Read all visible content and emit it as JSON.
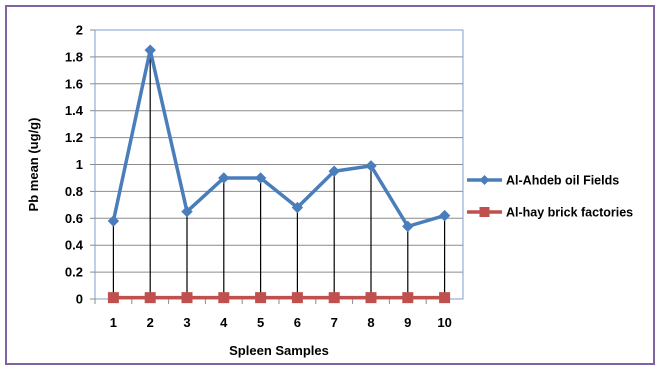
{
  "chart_data": {
    "type": "line",
    "title": "",
    "xlabel": "Spleen Samples",
    "ylabel": "Pb mean (ug/g)",
    "categories": [
      "1",
      "2",
      "3",
      "4",
      "5",
      "6",
      "7",
      "8",
      "9",
      "10"
    ],
    "ylim": [
      0,
      2
    ],
    "yticks": [
      "0",
      "0.2",
      "0.4",
      "0.6",
      "0.8",
      "1",
      "1.2",
      "1.4",
      "1.6",
      "1.8",
      "2"
    ],
    "grid": true,
    "legend_position": "right",
    "drop_lines": true,
    "series": [
      {
        "name": "Al-Ahdeb oil Fields",
        "values": [
          0.58,
          1.85,
          0.65,
          0.9,
          0.9,
          0.68,
          0.95,
          0.99,
          0.54,
          0.62
        ],
        "color": "#4a7ebb",
        "marker": "diamond"
      },
      {
        "name": "Al-hay brick factories",
        "values": [
          0.01,
          0.01,
          0.01,
          0.01,
          0.01,
          0.01,
          0.01,
          0.01,
          0.01,
          0.01
        ],
        "color": "#c0504d",
        "marker": "square"
      }
    ],
    "colors": {
      "frame_border": "#8064a2",
      "plot_border": "#7f9fcf",
      "grid": "#8c8c8c",
      "drop_line": "#000000"
    }
  }
}
